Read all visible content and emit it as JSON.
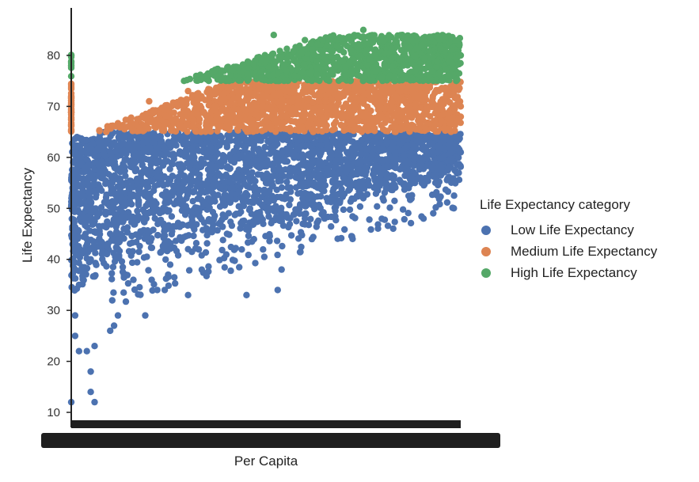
{
  "chart_data": {
    "type": "scatter",
    "title": "",
    "xlabel": "Per Capita",
    "ylabel": "Life Expectancy",
    "ylim": [
      8,
      88
    ],
    "yticks": [
      10,
      20,
      30,
      40,
      50,
      60,
      70,
      80
    ],
    "x_tick_labels_note": "x tick labels densely overlap into an illegible black band",
    "grid": false,
    "legend": {
      "title": "Life Expectancy category",
      "placement": "right"
    },
    "series": [
      {
        "name": "Low Life Expectancy",
        "color": "#4c72b0",
        "y_range": [
          12,
          65
        ],
        "points": [
          [
            0.0,
            12
          ],
          [
            0.01,
            25
          ],
          [
            0.02,
            22
          ],
          [
            0.01,
            29
          ],
          [
            0.05,
            14
          ],
          [
            0.06,
            12
          ],
          [
            0.05,
            18
          ],
          [
            0.04,
            22
          ],
          [
            0.06,
            23
          ],
          [
            0.1,
            26
          ],
          [
            0.12,
            29
          ],
          [
            0.11,
            27
          ],
          [
            0.19,
            29
          ],
          [
            0.45,
            33
          ],
          [
            0.53,
            34
          ],
          [
            0.54,
            38
          ],
          [
            0.24,
            34
          ],
          [
            0.3,
            33
          ],
          [
            0.02,
            35
          ],
          [
            0.05,
            40
          ],
          [
            0.1,
            45
          ],
          [
            0.15,
            52
          ],
          [
            0.2,
            57
          ],
          [
            0.3,
            60
          ],
          [
            0.4,
            58
          ],
          [
            0.5,
            55
          ],
          [
            0.6,
            53
          ],
          [
            0.7,
            56
          ],
          [
            0.8,
            52
          ],
          [
            0.9,
            55
          ],
          [
            0.95,
            58
          ],
          [
            1.0,
            61
          ],
          [
            0.4,
            45
          ],
          [
            0.3,
            42
          ],
          [
            0.6,
            48
          ],
          [
            0.75,
            52
          ]
        ]
      },
      {
        "name": "Medium Life Expectancy",
        "color": "#dd8452",
        "y_range": [
          65,
          75
        ],
        "points": [
          [
            0.0,
            70
          ],
          [
            0.09,
            65
          ],
          [
            0.15,
            66
          ],
          [
            0.2,
            71
          ],
          [
            0.3,
            73
          ],
          [
            0.5,
            72
          ],
          [
            0.7,
            68
          ],
          [
            0.9,
            74
          ],
          [
            1.0,
            70
          ]
        ]
      },
      {
        "name": "High Life Expectancy",
        "color": "#55a868",
        "y_range": [
          75,
          85
        ],
        "points": [
          [
            0.0,
            80
          ],
          [
            0.35,
            76
          ],
          [
            0.5,
            79
          ],
          [
            0.52,
            84
          ],
          [
            0.6,
            83
          ],
          [
            0.75,
            85
          ],
          [
            0.85,
            84
          ],
          [
            0.9,
            82
          ],
          [
            1.0,
            80
          ]
        ]
      }
    ]
  }
}
